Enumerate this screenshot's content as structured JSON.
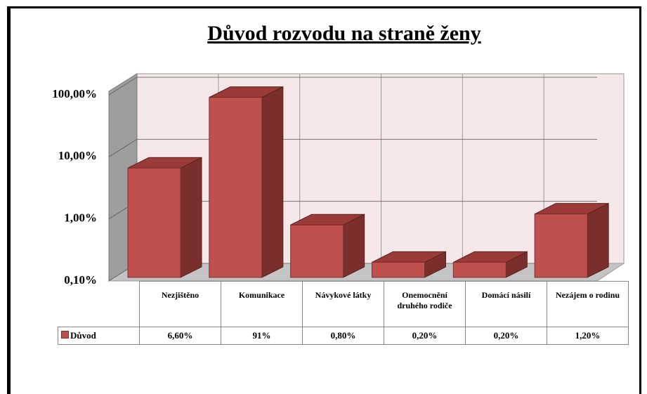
{
  "chart_data": {
    "type": "bar",
    "title": "Důvod rozvodu na straně ženy",
    "categories": [
      "Nezjištěno",
      "Komunikace",
      "Návykové látky",
      "Onemocnění druhého rodiče",
      "Domácí násilí",
      "Nezájem o rodinu"
    ],
    "series": [
      {
        "name": "Důvod",
        "color": "#c0504d",
        "values": [
          6.6,
          91,
          0.8,
          0.2,
          0.2,
          1.2
        ],
        "value_labels": [
          "6,60%",
          "91%",
          "0,80%",
          "0,20%",
          "0,20%",
          "1,20%"
        ]
      }
    ],
    "log_scale": true,
    "grid": true,
    "ylim": [
      0.1,
      100
    ],
    "yticks": [
      {
        "value": 0.1,
        "label": "0,10%"
      },
      {
        "value": 1,
        "label": "1,00%"
      },
      {
        "value": 10,
        "label": "10,00%"
      },
      {
        "value": 100,
        "label": "100,00%"
      }
    ]
  }
}
